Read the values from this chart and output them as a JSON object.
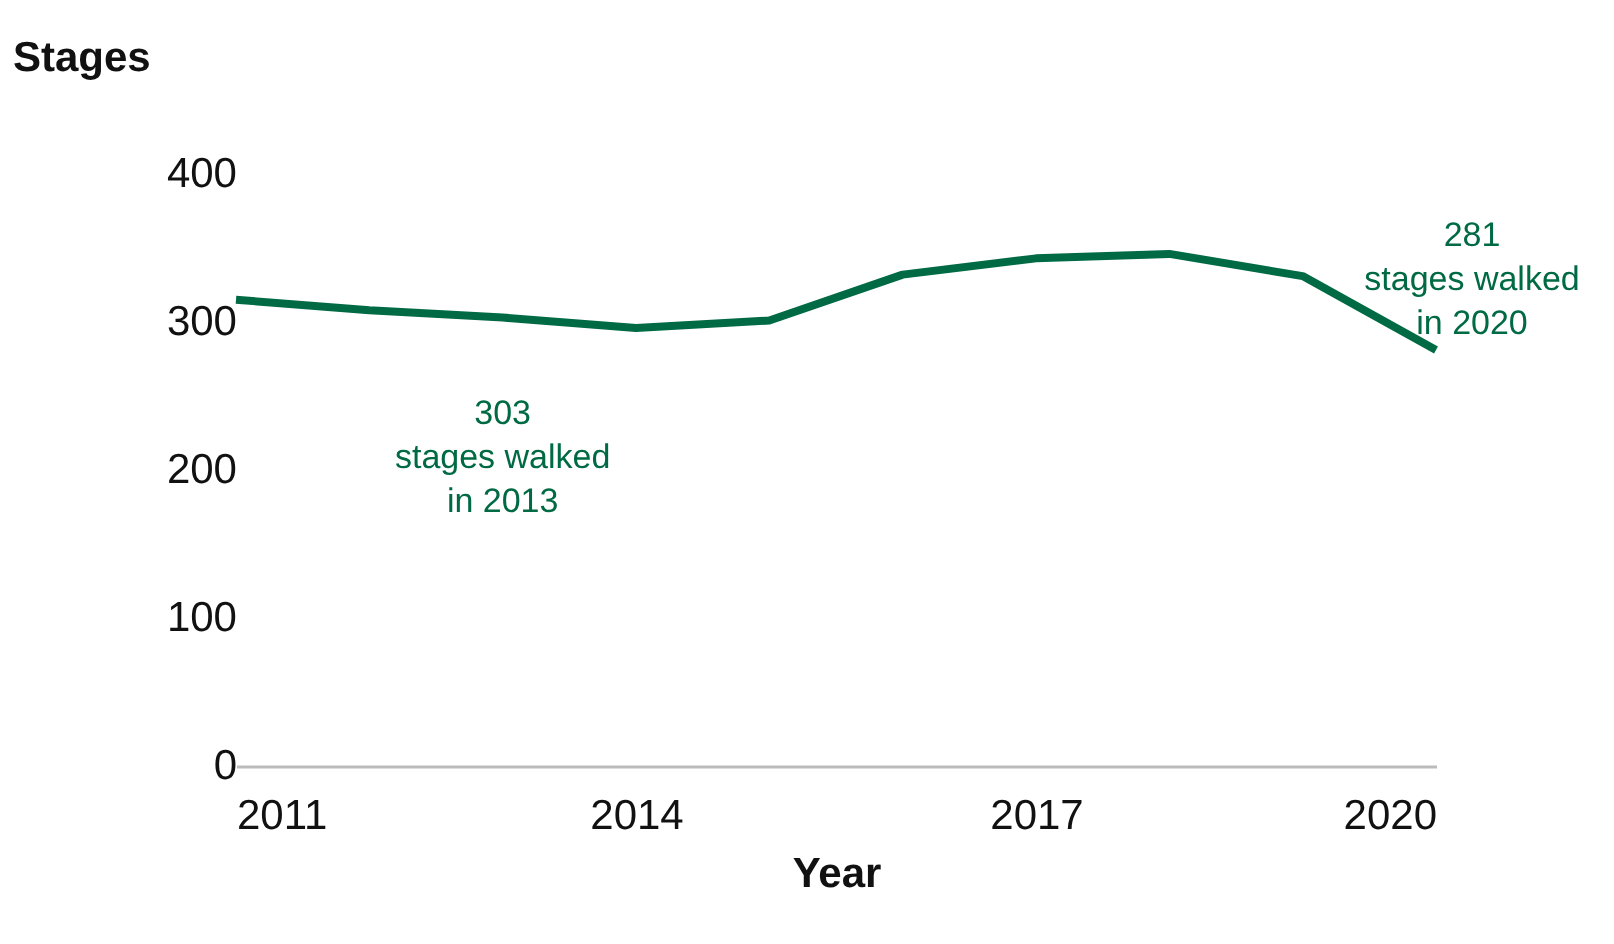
{
  "chart_data": {
    "type": "line",
    "xlabel": "Year",
    "ylabel": "Stages",
    "x": [
      2011,
      2012,
      2013,
      2014,
      2015,
      2016,
      2017,
      2018,
      2019,
      2020
    ],
    "series": [
      {
        "color": "#006a44",
        "values": [
          315,
          308,
          303,
          296,
          301,
          332,
          343,
          346,
          331,
          281
        ]
      }
    ],
    "xlim": [
      2011,
      2020
    ],
    "xticks": [
      2011,
      2014,
      2017,
      2020
    ],
    "ylim": [
      0,
      400
    ],
    "yticks": [
      0,
      100,
      200,
      300,
      400
    ],
    "grid": false,
    "legend": false,
    "marker": "none",
    "line_style": "solid",
    "annotations": [
      {
        "text": "303\nstages walked\nin 2013",
        "x": 2013,
        "y": 303
      },
      {
        "text": "281\nstages walked\nin 2020",
        "x": 2020,
        "y": 281
      }
    ]
  }
}
